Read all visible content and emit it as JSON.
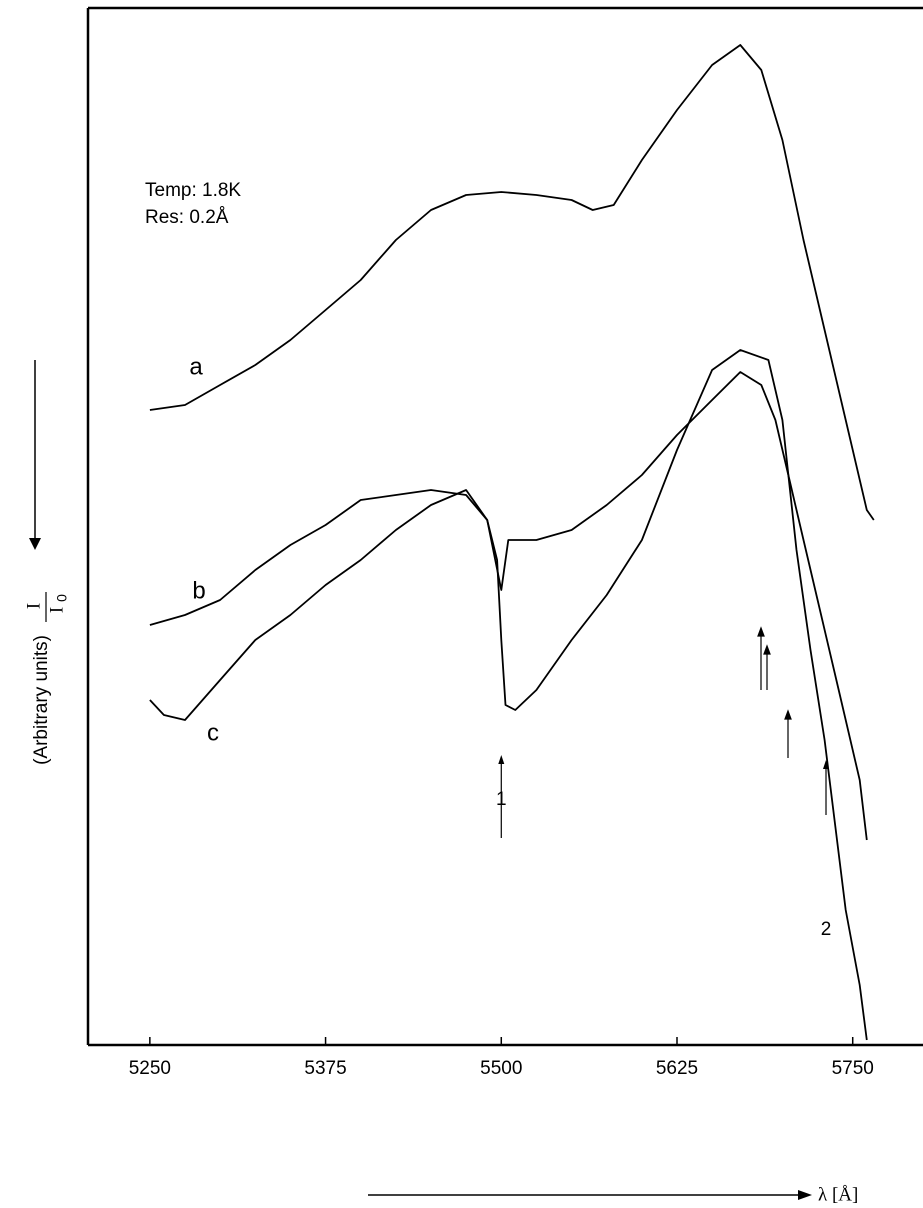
{
  "chart_data": {
    "type": "line",
    "x_label": "λ [Å]",
    "y_label": "(Arbitrary units)",
    "y_label_numerator": "I",
    "y_label_denominator": "I",
    "y_label_subscript": "0",
    "annotations_text": [
      "Temp: 1.8K",
      "Res: 0.2Å"
    ],
    "markers": [
      {
        "text": "1",
        "x": 5500
      },
      {
        "text": "2",
        "x": 5731
      }
    ],
    "xlim": [
      5206,
      5800
    ],
    "xticks": [
      5250,
      5375,
      5500,
      5625,
      5750
    ],
    "ylim": [
      0,
      1037
    ],
    "color": "#000000",
    "series": [
      {
        "name": "a",
        "x": [
          5250,
          5275,
          5300,
          5325,
          5350,
          5375,
          5400,
          5425,
          5450,
          5475,
          5500,
          5525,
          5550,
          5565,
          5580,
          5600,
          5625,
          5650,
          5670,
          5685,
          5700,
          5715,
          5730,
          5745,
          5760,
          5765
        ],
        "values": [
          635,
          640,
          660,
          680,
          705,
          735,
          765,
          805,
          835,
          850,
          853,
          850,
          845,
          835,
          840,
          885,
          935,
          980,
          1000,
          975,
          905,
          805,
          715,
          625,
          535,
          525
        ]
      },
      {
        "name": "b",
        "x": [
          5250,
          5275,
          5300,
          5325,
          5350,
          5375,
          5400,
          5425,
          5450,
          5475,
          5490,
          5500,
          5505,
          5525,
          5550,
          5575,
          5600,
          5625,
          5650,
          5670,
          5685,
          5695,
          5705,
          5715,
          5725,
          5740,
          5755,
          5760
        ],
        "values": [
          420,
          430,
          445,
          475,
          500,
          520,
          545,
          550,
          555,
          550,
          525,
          455,
          505,
          505,
          515,
          540,
          570,
          610,
          645,
          673,
          660,
          625,
          565,
          505,
          445,
          355,
          265,
          205
        ]
      },
      {
        "name": "c",
        "x": [
          5250,
          5260,
          5275,
          5300,
          5325,
          5350,
          5375,
          5400,
          5425,
          5450,
          5475,
          5490,
          5497,
          5500,
          5503,
          5510,
          5525,
          5550,
          5575,
          5600,
          5625,
          5650,
          5670,
          5690,
          5700,
          5710,
          5720,
          5730,
          5745,
          5755,
          5760
        ],
        "values": [
          345,
          330,
          325,
          365,
          405,
          430,
          460,
          485,
          515,
          540,
          555,
          525,
          485,
          405,
          340,
          335,
          355,
          405,
          450,
          505,
          595,
          675,
          695,
          685,
          625,
          495,
          395,
          305,
          135,
          60,
          5
        ]
      }
    ]
  }
}
